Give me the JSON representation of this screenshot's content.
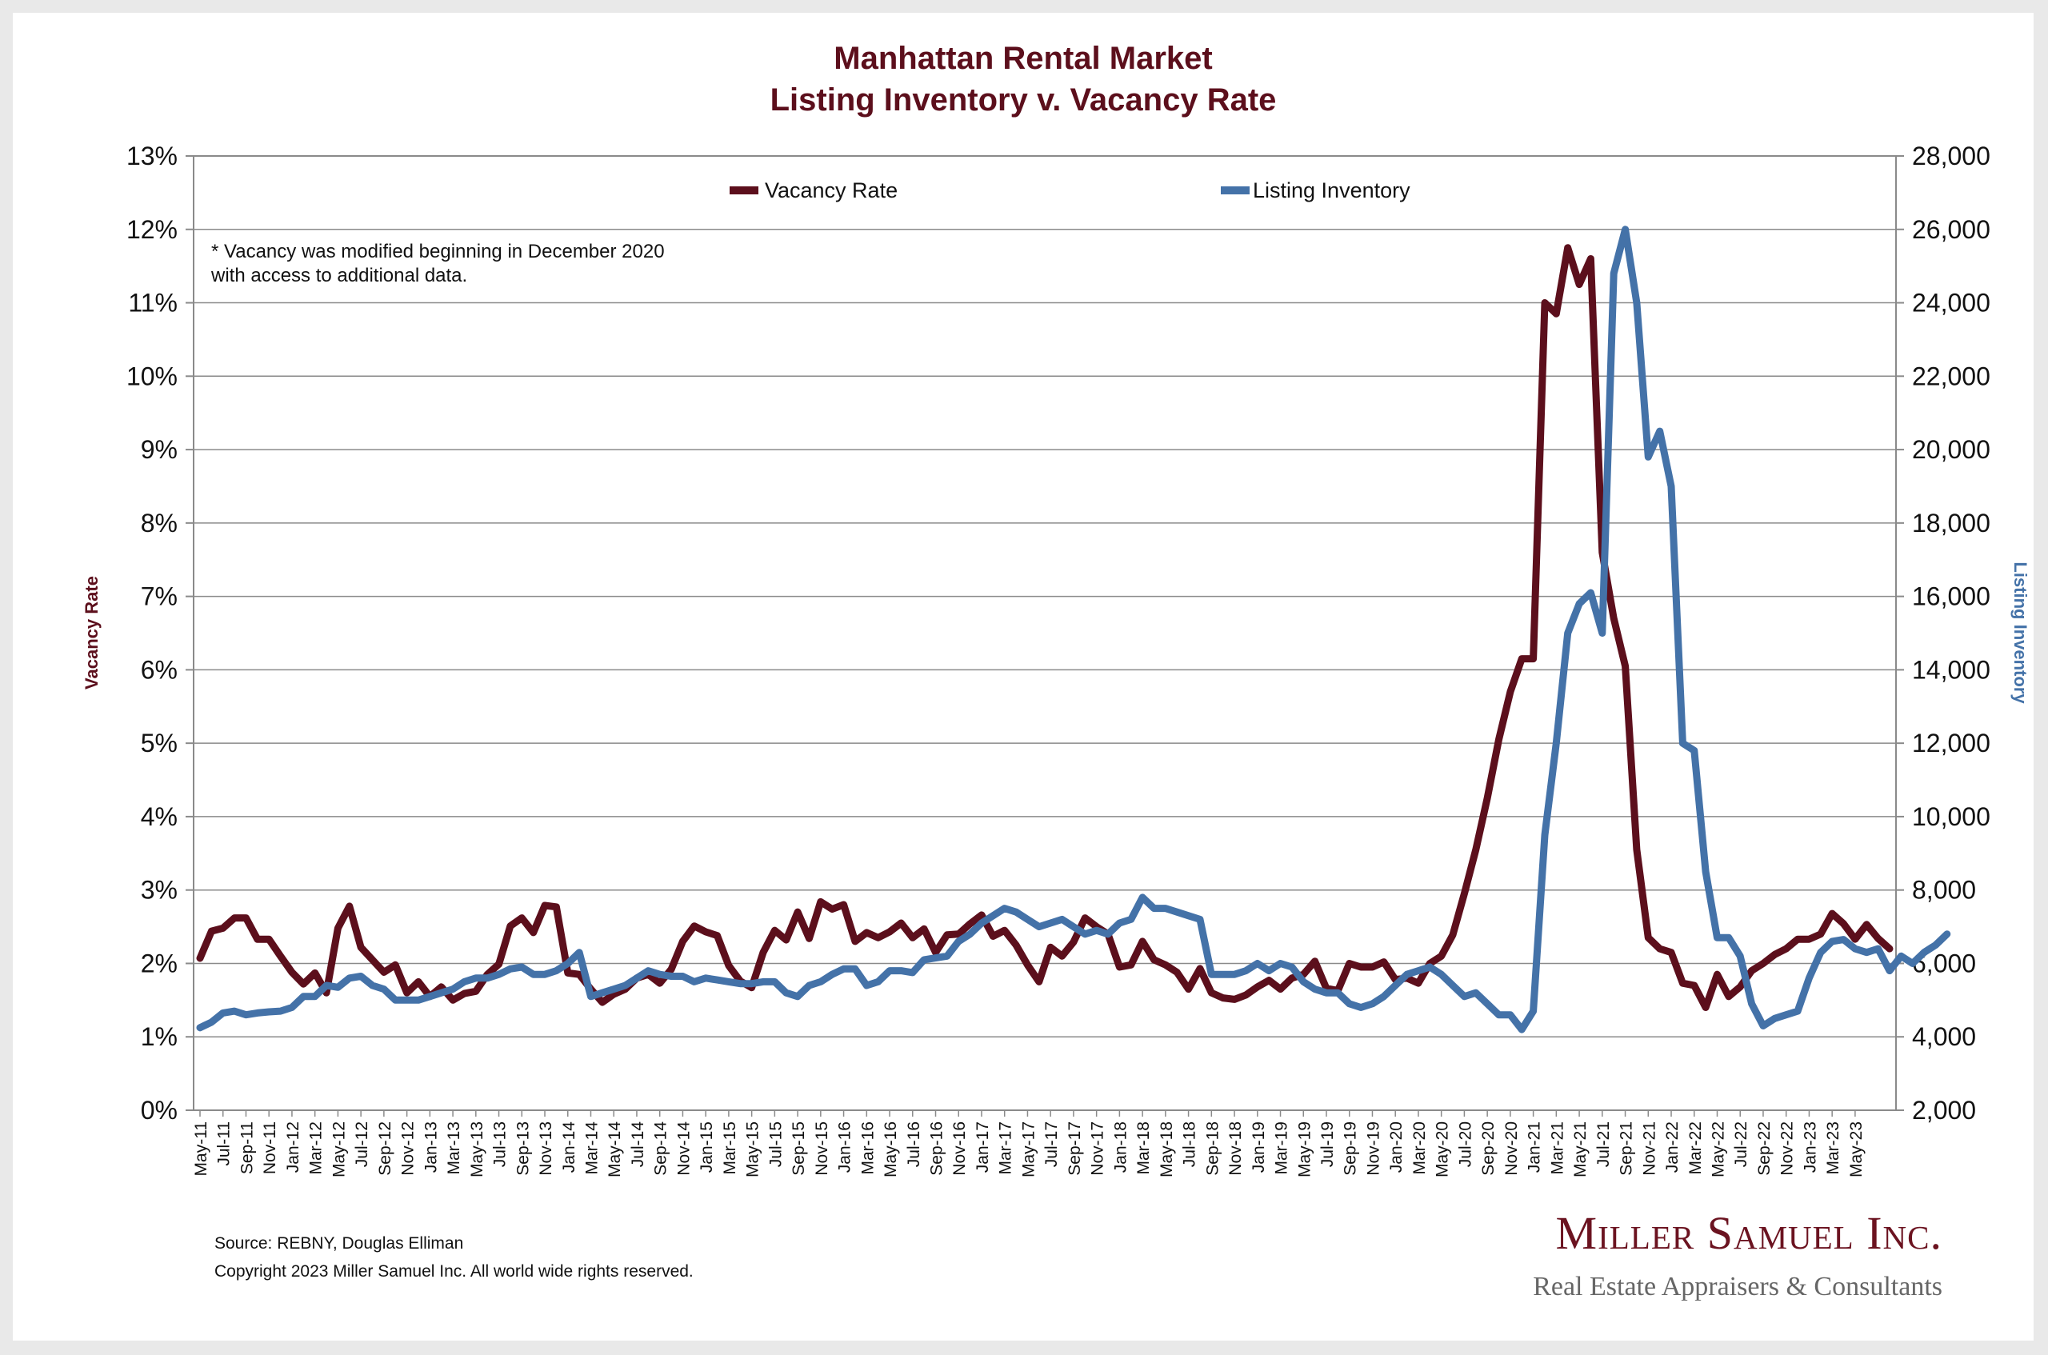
{
  "chart_data": {
    "type": "line",
    "title": "Manhattan Rental Market",
    "subtitle": "Listing Inventory v. Vacancy Rate",
    "ylabel_left": "Vacancy Rate",
    "ylabel_right": "Listing Inventory",
    "ylim_left": [
      0,
      13
    ],
    "ylim_right": [
      2000,
      28000
    ],
    "yticks_left": [
      "0%",
      "1%",
      "2%",
      "3%",
      "4%",
      "5%",
      "6%",
      "7%",
      "8%",
      "9%",
      "10%",
      "11%",
      "12%",
      "13%"
    ],
    "yticks_right": [
      "2,000",
      "4,000",
      "6,000",
      "8,000",
      "10,000",
      "12,000",
      "14,000",
      "16,000",
      "18,000",
      "20,000",
      "22,000",
      "24,000",
      "26,000",
      "28,000"
    ],
    "grid": "horizontal",
    "legend_position": "top",
    "x_labels": [
      "May-11",
      "Jul-11",
      "Sep-11",
      "Nov-11",
      "Jan-12",
      "Mar-12",
      "May-12",
      "Jul-12",
      "Sep-12",
      "Nov-12",
      "Jan-13",
      "Mar-13",
      "May-13",
      "Jul-13",
      "Sep-13",
      "Nov-13",
      "Jan-14",
      "Mar-14",
      "May-14",
      "Jul-14",
      "Sep-14",
      "Nov-14",
      "Jan-15",
      "Mar-15",
      "May-15",
      "Jul-15",
      "Sep-15",
      "Nov-15",
      "Jan-16",
      "Mar-16",
      "May-16",
      "Jul-16",
      "Sep-16",
      "Nov-16",
      "Jan-17",
      "Mar-17",
      "May-17",
      "Jul-17",
      "Sep-17",
      "Nov-17",
      "Jan-18",
      "Mar-18",
      "May-18",
      "Jul-18",
      "Sep-18",
      "Nov-18",
      "Jan-19",
      "Mar-19",
      "May-19",
      "Jul-19",
      "Sep-19",
      "Nov-19",
      "Jan-20",
      "Mar-20",
      "May-20",
      "Jul-20",
      "Sep-20",
      "Nov-20",
      "Jan-21",
      "Mar-21",
      "May-21",
      "Jul-21",
      "Sep-21",
      "Nov-21",
      "Jan-22",
      "Mar-22",
      "May-22",
      "Jul-22",
      "Sep-22",
      "Nov-22",
      "Jan-23",
      "Mar-23",
      "May-23"
    ],
    "series": [
      {
        "name": "Vacancy Rate",
        "axis": "left",
        "color": "#5c0f1c",
        "values": [
          2.07,
          2.44,
          2.48,
          2.62,
          2.62,
          2.33,
          2.33,
          2.1,
          1.88,
          1.72,
          1.87,
          1.6,
          2.48,
          2.78,
          2.22,
          2.05,
          1.88,
          1.98,
          1.6,
          1.75,
          1.55,
          1.68,
          1.5,
          1.59,
          1.62,
          1.85,
          1.99,
          2.51,
          2.62,
          2.42,
          2.79,
          2.77,
          1.87,
          1.85,
          1.65,
          1.47,
          1.58,
          1.65,
          1.8,
          1.85,
          1.73,
          1.92,
          2.3,
          2.51,
          2.43,
          2.38,
          1.97,
          1.76,
          1.67,
          2.15,
          2.45,
          2.32,
          2.7,
          2.34,
          2.84,
          2.74,
          2.8,
          2.3,
          2.42,
          2.35,
          2.43,
          2.55,
          2.35,
          2.47,
          2.15,
          2.39,
          2.4,
          2.54,
          2.66,
          2.37,
          2.45,
          2.25,
          1.98,
          1.75,
          2.22,
          2.1,
          2.29,
          2.62,
          2.5,
          2.4,
          1.95,
          1.98,
          2.3,
          2.05,
          1.98,
          1.88,
          1.65,
          1.93,
          1.6,
          1.53,
          1.51,
          1.57,
          1.68,
          1.77,
          1.65,
          1.8,
          1.85,
          2.03,
          1.66,
          1.63,
          2.0,
          1.95,
          1.95,
          2.02,
          1.78,
          1.8,
          1.73,
          2.0,
          2.1,
          2.39,
          2.95,
          3.55,
          4.25,
          5.05,
          5.7,
          6.15,
          6.15,
          11.0,
          10.85,
          11.75,
          11.25,
          11.6,
          7.6,
          6.7,
          6.05,
          3.55,
          2.35,
          2.2,
          2.15,
          1.73,
          1.7,
          1.4,
          1.85,
          1.55,
          1.68,
          1.9,
          2.0,
          2.12,
          2.2,
          2.33,
          2.33,
          2.4,
          2.68,
          2.54,
          2.33,
          2.53,
          2.34,
          2.2
        ]
      },
      {
        "name": "Listing Inventory",
        "axis": "right",
        "color": "#4472a8",
        "values": [
          4250,
          4400,
          4650,
          4700,
          4600,
          4650,
          4680,
          4700,
          4800,
          5100,
          5100,
          5400,
          5350,
          5600,
          5650,
          5400,
          5300,
          5000,
          5000,
          5000,
          5100,
          5200,
          5300,
          5500,
          5600,
          5600,
          5700,
          5850,
          5900,
          5700,
          5700,
          5800,
          6000,
          6300,
          5100,
          5200,
          5300,
          5400,
          5600,
          5800,
          5700,
          5650,
          5650,
          5500,
          5600,
          5550,
          5500,
          5450,
          5450,
          5500,
          5500,
          5200,
          5100,
          5400,
          5500,
          5700,
          5850,
          5850,
          5400,
          5500,
          5800,
          5800,
          5750,
          6100,
          6150,
          6200,
          6600,
          6800,
          7100,
          7300,
          7500,
          7400,
          7200,
          7000,
          7100,
          7200,
          7000,
          6800,
          6900,
          6800,
          7100,
          7200,
          7800,
          7500,
          7500,
          7400,
          7300,
          7200,
          5700,
          5700,
          5700,
          5800,
          6000,
          5800,
          6000,
          5900,
          5500,
          5300,
          5200,
          5200,
          4900,
          4800,
          4900,
          5100,
          5400,
          5700,
          5800,
          5900,
          5700,
          5400,
          5100,
          5200,
          4900,
          4600,
          4600,
          4200,
          4700,
          9500,
          12000,
          15000,
          15800,
          16100,
          15000,
          24800,
          26000,
          24000,
          19800,
          20500,
          19000,
          12000,
          11800,
          8500,
          6700,
          6700,
          6200,
          4900,
          4300,
          4500,
          4600,
          4700,
          5600,
          6300,
          6600,
          6650,
          6400,
          6300,
          6400,
          5800,
          6200,
          6000,
          6300,
          6500,
          6800
        ]
      }
    ],
    "annotation_lines": [
      "* Vacancy was modified beginning in December 2020",
      "with access to additional data."
    ]
  },
  "footer": {
    "source": "Source: REBNY, Douglas Elliman",
    "copyright": "Copyright 2023 Miller Samuel Inc.  All world wide rights reserved."
  },
  "brand": {
    "name": "Miller Samuel Inc.",
    "tagline": "Real Estate Appraisers & Consultants"
  }
}
